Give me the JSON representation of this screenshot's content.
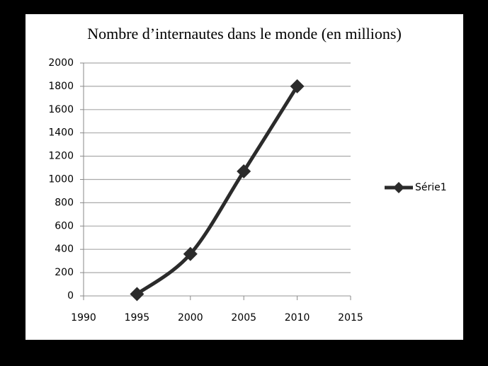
{
  "chart_data": {
    "type": "line",
    "title": "Nombre d’internautes dans le monde (en millions)",
    "x": [
      1995,
      2000,
      2005,
      2010
    ],
    "series": [
      {
        "name": "Série1",
        "color": "#2b2b2b",
        "values": [
          16,
          360,
          1070,
          1800
        ]
      }
    ],
    "xlim": [
      1990,
      2015
    ],
    "xticks": [
      1990,
      1995,
      2000,
      2005,
      2010,
      2015
    ],
    "ylim": [
      0,
      2000
    ],
    "yticks": [
      0,
      200,
      400,
      600,
      800,
      1000,
      1200,
      1400,
      1600,
      1800,
      2000
    ],
    "grid": true,
    "smooth": true,
    "legend": "right"
  }
}
